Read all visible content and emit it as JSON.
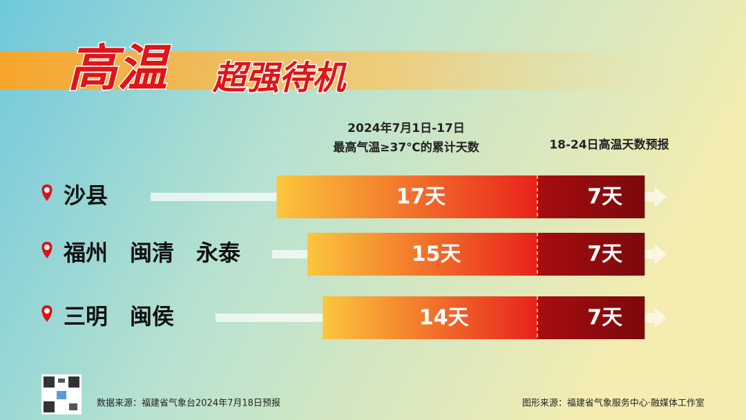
{
  "chart_data": {
    "type": "bar",
    "title": "高温",
    "subtitle": "超强待机",
    "categories": [
      "沙县",
      "福州　闽清　永泰",
      "三明　闽侯"
    ],
    "series": [
      {
        "name": "2024年7月1日-17日\n最高气温≥37℃的累计天数",
        "color": "#e8221b",
        "values": [
          17,
          15,
          14
        ],
        "value_labels": [
          "17天",
          "15天",
          "14天"
        ]
      },
      {
        "name": "18-24日高温天数预报",
        "color": "#a80c10",
        "values": [
          7,
          7,
          7
        ],
        "value_labels": [
          "7天",
          "7天",
          "7天"
        ]
      }
    ],
    "source": "数据来源：福建省气象台2024年7月18日预报",
    "credit": "图形来源：福建省气象服务中心·融媒体工作室"
  }
}
